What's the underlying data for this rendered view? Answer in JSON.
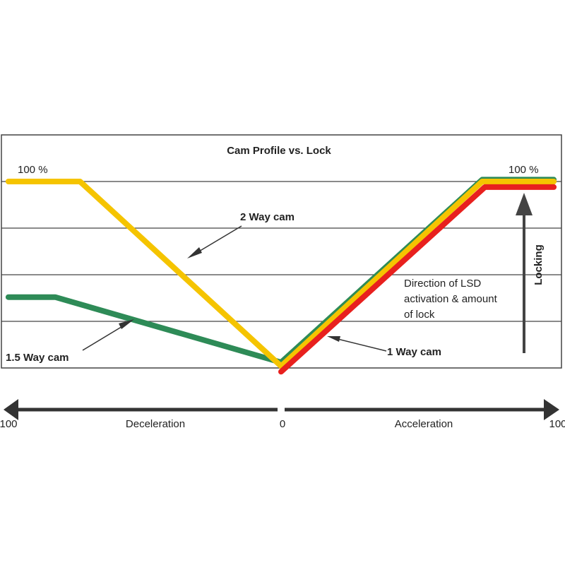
{
  "chart_data": {
    "type": "line",
    "title": "Cam Profile vs. Lock",
    "xlim": [
      -100,
      100
    ],
    "ylim": [
      0,
      100
    ],
    "grid": true,
    "x_tick_labels": [
      "100",
      "0",
      "100"
    ],
    "x_axis_labels": {
      "left": "Deceleration",
      "right": "Acceleration"
    },
    "y_labels": {
      "left": "100 %",
      "right": "100 %"
    },
    "series": [
      {
        "name": "2 Way cam",
        "color": "#f5c400",
        "points": [
          [
            -99,
            100
          ],
          [
            -73,
            100
          ],
          [
            0,
            1
          ],
          [
            73,
            100
          ],
          [
            99,
            100
          ]
        ]
      },
      {
        "name": "1.5 Way cam",
        "color": "#2e8b57",
        "points": [
          [
            -99,
            38
          ],
          [
            -82,
            38
          ],
          [
            0,
            3
          ],
          [
            73,
            101
          ],
          [
            99,
            101
          ]
        ]
      },
      {
        "name": "1 Way cam",
        "color": "#e8201e",
        "points": [
          [
            0,
            -2
          ],
          [
            74,
            97
          ],
          [
            99,
            97
          ]
        ]
      }
    ],
    "annotations": {
      "locking": "Locking",
      "direction_lines": [
        "Direction of LSD",
        "activation & amount",
        "of lock"
      ]
    }
  }
}
